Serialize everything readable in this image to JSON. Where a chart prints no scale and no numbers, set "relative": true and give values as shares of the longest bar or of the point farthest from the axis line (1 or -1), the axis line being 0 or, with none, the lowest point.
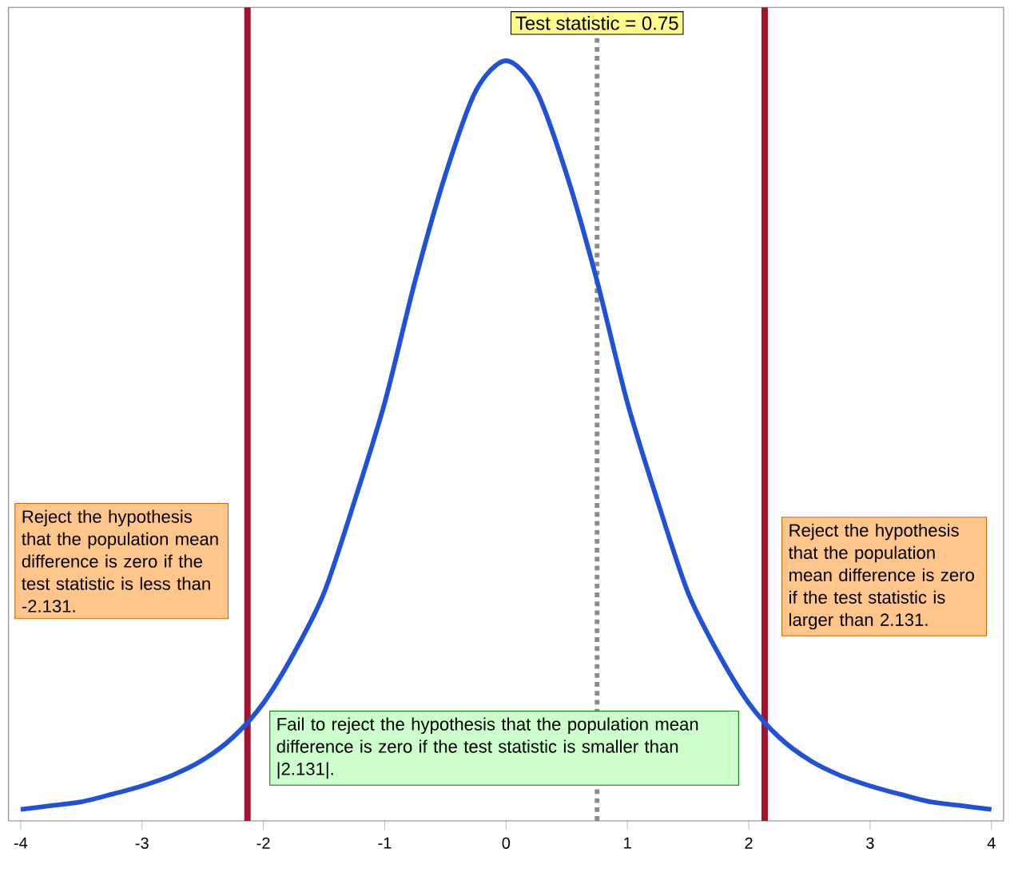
{
  "chart_data": {
    "type": "line",
    "relative": true,
    "x": [
      -4,
      -3.75,
      -3.5,
      -3.25,
      -3,
      -2.75,
      -2.5,
      -2.25,
      -2,
      -1.75,
      -1.5,
      -1.25,
      -1,
      -0.75,
      -0.5,
      -0.25,
      0,
      0.25,
      0.5,
      0.75,
      1,
      1.25,
      1.5,
      1.75,
      2,
      2.25,
      2.5,
      2.75,
      3,
      3.25,
      3.5,
      3.75,
      4
    ],
    "series": [
      {
        "color": "#1f52d8",
        "values": [
          0.015,
          0.02,
          0.025,
          0.035,
          0.046,
          0.06,
          0.08,
          0.11,
          0.155,
          0.22,
          0.3,
          0.42,
          0.55,
          0.71,
          0.85,
          0.96,
          1,
          0.96,
          0.85,
          0.71,
          0.55,
          0.42,
          0.3,
          0.22,
          0.155,
          0.11,
          0.08,
          0.06,
          0.046,
          0.035,
          0.025,
          0.02,
          0.015
        ]
      }
    ],
    "xlim": [
      -4.1,
      4.1
    ],
    "xticks": [
      -4,
      -3,
      -2,
      -1,
      0,
      1,
      2,
      3,
      4
    ],
    "ref_lines": [
      {
        "axis": "x",
        "value": -2.131,
        "color": "#a3132e",
        "line_style": "solid"
      },
      {
        "axis": "x",
        "value": 2.131,
        "color": "#a3132e",
        "line_style": "solid"
      },
      {
        "axis": "x",
        "value": 0.75,
        "color": "#8c8c8c",
        "line_style": "dotted",
        "label": "Test statistic = 0.75"
      }
    ],
    "annotations": [
      "Reject the hypothesis that the population mean difference is zero if the test statistic is less than -2.131.",
      "Reject the hypothesis that the population mean difference is zero if the test statistic is larger than 2.131.",
      "Fail to reject the hypothesis that the population mean difference is zero if the test statistic is smaller than |2.131|."
    ],
    "grid": false,
    "marker": "none",
    "line_style": "solid"
  }
}
